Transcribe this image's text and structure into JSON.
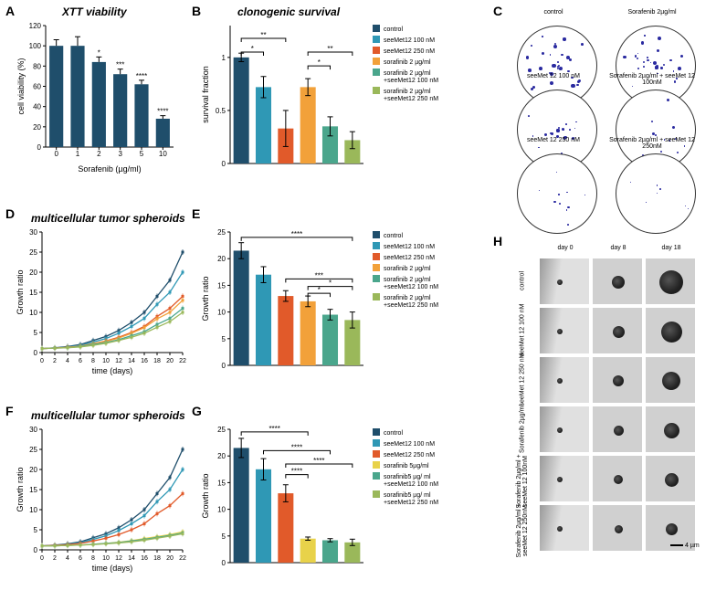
{
  "palette": {
    "control": "#1f4e6b",
    "s100": "#2f98b5",
    "s250": "#e15a2a",
    "sora2": "#f2a13a",
    "sora2_s100": "#4aa68c",
    "sora2_s250": "#9ab85a",
    "sora5": "#e8d24a",
    "axis": "#000000",
    "grid": "#e0e0e0",
    "sig": "#000000"
  },
  "panelA": {
    "label": "A",
    "title": "XTT viability",
    "ylabel": "cell viability (%)",
    "xlabel": "Sorafenib (µg/ml)",
    "x_categories": [
      "0",
      "1",
      "2",
      "3",
      "5",
      "10"
    ],
    "values": [
      100,
      100,
      84,
      72,
      62,
      28
    ],
    "errs": [
      6,
      9,
      5,
      5,
      4,
      3
    ],
    "sig": [
      "",
      "",
      "*",
      "***",
      "****",
      "****"
    ],
    "yticks": [
      0,
      20,
      40,
      60,
      80,
      100,
      120
    ],
    "bar_color": "#1f4e6b"
  },
  "panelB": {
    "label": "B",
    "title": "clonogenic survival",
    "ylabel": "survival fraction",
    "legend": [
      {
        "label": "control",
        "color": "#1f4e6b"
      },
      {
        "label": "seeMet12 100 nM",
        "color": "#2f98b5"
      },
      {
        "label": "seeMet12 250 nM",
        "color": "#e15a2a"
      },
      {
        "label": "sorafinib 2 µg/ml",
        "color": "#f2a13a"
      },
      {
        "label": "sorafinib 2 µg/ml +seeMet12 100 nM",
        "color": "#4aa68c"
      },
      {
        "label": "sorafinib 2 µg/ml + seeMet12 250 nM",
        "color": "#9ab85a"
      }
    ],
    "values": [
      1.0,
      0.72,
      0.33,
      0.72,
      0.35,
      0.22
    ],
    "errs": [
      0.04,
      0.1,
      0.17,
      0.08,
      0.09,
      0.08
    ],
    "yticks": [
      0.0,
      0.5,
      1.0
    ],
    "sig_brackets": [
      {
        "from": 0,
        "to": 1,
        "y": 1.05,
        "label": "*"
      },
      {
        "from": 0,
        "to": 2,
        "y": 1.18,
        "label": "**"
      },
      {
        "from": 3,
        "to": 4,
        "y": 0.92,
        "label": "*"
      },
      {
        "from": 3,
        "to": 5,
        "y": 1.05,
        "label": "**"
      }
    ]
  },
  "panelC": {
    "label": "C",
    "plates": [
      {
        "title": "control",
        "density": 35,
        "size": 3.0
      },
      {
        "title": "Sorafenib 2µg/ml",
        "density": 30,
        "size": 2.8
      },
      {
        "title": "seeMet 12 100 nM",
        "density": 22,
        "size": 2.5
      },
      {
        "title": "Sorafenib 2µg/ml + seeMet 12 100nM",
        "density": 14,
        "size": 2.2
      },
      {
        "title": "seeMet 12 250 nM",
        "density": 10,
        "size": 1.6
      },
      {
        "title": "Sorafenib 2µg/ml + seeMet 12 250nM",
        "density": 7,
        "size": 1.2
      }
    ]
  },
  "panelD": {
    "label": "D",
    "title": "multicellular tumor spheroids",
    "ylabel": "Growth ratio",
    "xlabel": "time (days)",
    "xticks": [
      0,
      2,
      4,
      6,
      8,
      10,
      12,
      14,
      16,
      18,
      20,
      22
    ],
    "yticks": [
      0,
      5,
      10,
      15,
      20,
      25,
      30
    ],
    "series": [
      {
        "color": "#1f4e6b",
        "vals": [
          1,
          1.2,
          1.5,
          2,
          3,
          4,
          5.5,
          7.5,
          10,
          14,
          18,
          25
        ]
      },
      {
        "color": "#2f98b5",
        "vals": [
          1,
          1.1,
          1.4,
          1.8,
          2.6,
          3.5,
          4.8,
          6.5,
          8.5,
          12,
          15,
          20
        ]
      },
      {
        "color": "#e15a2a",
        "vals": [
          1,
          1.1,
          1.3,
          1.6,
          2.2,
          2.9,
          3.8,
          5.0,
          6.5,
          9,
          11,
          14
        ]
      },
      {
        "color": "#f2a13a",
        "vals": [
          1,
          1.1,
          1.3,
          1.6,
          2.2,
          2.8,
          3.6,
          4.8,
          6.2,
          8.4,
          10,
          13
        ]
      },
      {
        "color": "#4aa68c",
        "vals": [
          1,
          1.1,
          1.2,
          1.5,
          2.0,
          2.5,
          3.2,
          4.2,
          5.2,
          7,
          8.5,
          11
        ]
      },
      {
        "color": "#9ab85a",
        "vals": [
          1,
          1.1,
          1.2,
          1.4,
          1.8,
          2.3,
          3.0,
          3.8,
          4.8,
          6.3,
          7.7,
          10
        ]
      }
    ]
  },
  "panelE": {
    "label": "E",
    "legend_ref": "panelB",
    "ylabel": "Growth ratio",
    "yticks": [
      0,
      5,
      10,
      15,
      20,
      25
    ],
    "values": [
      21.5,
      17,
      13,
      12,
      9.5,
      8.5
    ],
    "errs": [
      1.5,
      1.5,
      1.0,
      1.0,
      1.0,
      1.5
    ],
    "sig_brackets": [
      {
        "from": 0,
        "to": 5,
        "y": 24.0,
        "label": "****"
      },
      {
        "from": 2,
        "to": 5,
        "y": 16.2,
        "label": "***"
      },
      {
        "from": 3,
        "to": 4,
        "y": 13.5,
        "label": "*"
      },
      {
        "from": 3,
        "to": 5,
        "y": 14.8,
        "label": "*"
      }
    ]
  },
  "panelF": {
    "label": "F",
    "title": "multicellular tumor spheroids",
    "ylabel": "Growth ratio",
    "xlabel": "time (days)",
    "xticks": [
      0,
      2,
      4,
      6,
      8,
      10,
      12,
      14,
      16,
      18,
      20,
      22
    ],
    "yticks": [
      0,
      5,
      10,
      15,
      20,
      25,
      30
    ],
    "series": [
      {
        "color": "#1f4e6b",
        "vals": [
          1,
          1.2,
          1.5,
          2,
          3,
          4,
          5.5,
          7.5,
          10,
          14,
          18,
          25
        ]
      },
      {
        "color": "#2f98b5",
        "vals": [
          1,
          1.1,
          1.4,
          1.8,
          2.6,
          3.5,
          4.8,
          6.5,
          8.5,
          12,
          15,
          20
        ]
      },
      {
        "color": "#e15a2a",
        "vals": [
          1,
          1.1,
          1.3,
          1.6,
          2.2,
          2.9,
          3.8,
          5.0,
          6.5,
          9,
          11,
          14
        ]
      },
      {
        "color": "#e8d24a",
        "vals": [
          1,
          1.0,
          1.1,
          1.2,
          1.4,
          1.6,
          1.9,
          2.3,
          2.8,
          3.3,
          3.8,
          4.5
        ]
      },
      {
        "color": "#4aa68c",
        "vals": [
          1,
          1.0,
          1.1,
          1.2,
          1.4,
          1.6,
          1.8,
          2.2,
          2.6,
          3.1,
          3.6,
          4.2
        ]
      },
      {
        "color": "#9ab85a",
        "vals": [
          1,
          1.0,
          1.1,
          1.2,
          1.3,
          1.5,
          1.7,
          2.0,
          2.4,
          2.9,
          3.4,
          4.0
        ]
      }
    ]
  },
  "panelG": {
    "label": "G",
    "ylabel": "Growth ratio",
    "yticks": [
      0,
      5,
      10,
      15,
      20,
      25
    ],
    "legend": [
      {
        "label": "control",
        "color": "#1f4e6b"
      },
      {
        "label": "seeMet12 100 nM",
        "color": "#2f98b5"
      },
      {
        "label": "seeMet12 250 nM",
        "color": "#e15a2a"
      },
      {
        "label": "sorafinib 5µg/ml",
        "color": "#e8d24a"
      },
      {
        "label": "sorafinib5 µg/ ml +seeMet12 100 nM",
        "color": "#4aa68c"
      },
      {
        "label": "sorafinib5 µg/ ml + seeMet12 250 nM",
        "color": "#9ab85a"
      }
    ],
    "values": [
      21.5,
      17.5,
      13,
      4.5,
      4.2,
      3.8
    ],
    "errs": [
      1.8,
      2.0,
      1.6,
      0.3,
      0.3,
      0.6
    ],
    "sig_brackets": [
      {
        "from": 0,
        "to": 3,
        "y": 24.5,
        "label": "****"
      },
      {
        "from": 1,
        "to": 4,
        "y": 21.0,
        "label": "****"
      },
      {
        "from": 2,
        "to": 3,
        "y": 16.5,
        "label": "****"
      },
      {
        "from": 2,
        "to": 5,
        "y": 18.5,
        "label": "****"
      }
    ]
  },
  "panelH": {
    "label": "H",
    "cols": [
      "day 0",
      "day 8",
      "day 18"
    ],
    "rows": [
      "control",
      "seeMet 12 100 nM",
      "seeMet 12 250 nM",
      "Sorafenib 2µg/ml",
      "Sorafenib 2µg/ml + seeMet 12 100nM",
      "Sorafenib 2µg/ml + seeMet 12 250nM"
    ],
    "scale_bar": "4 µm",
    "sizes": [
      [
        6,
        14,
        26
      ],
      [
        6,
        13,
        23
      ],
      [
        6,
        12,
        20
      ],
      [
        6,
        11,
        17
      ],
      [
        6,
        10,
        15
      ],
      [
        6,
        9,
        13
      ]
    ]
  }
}
